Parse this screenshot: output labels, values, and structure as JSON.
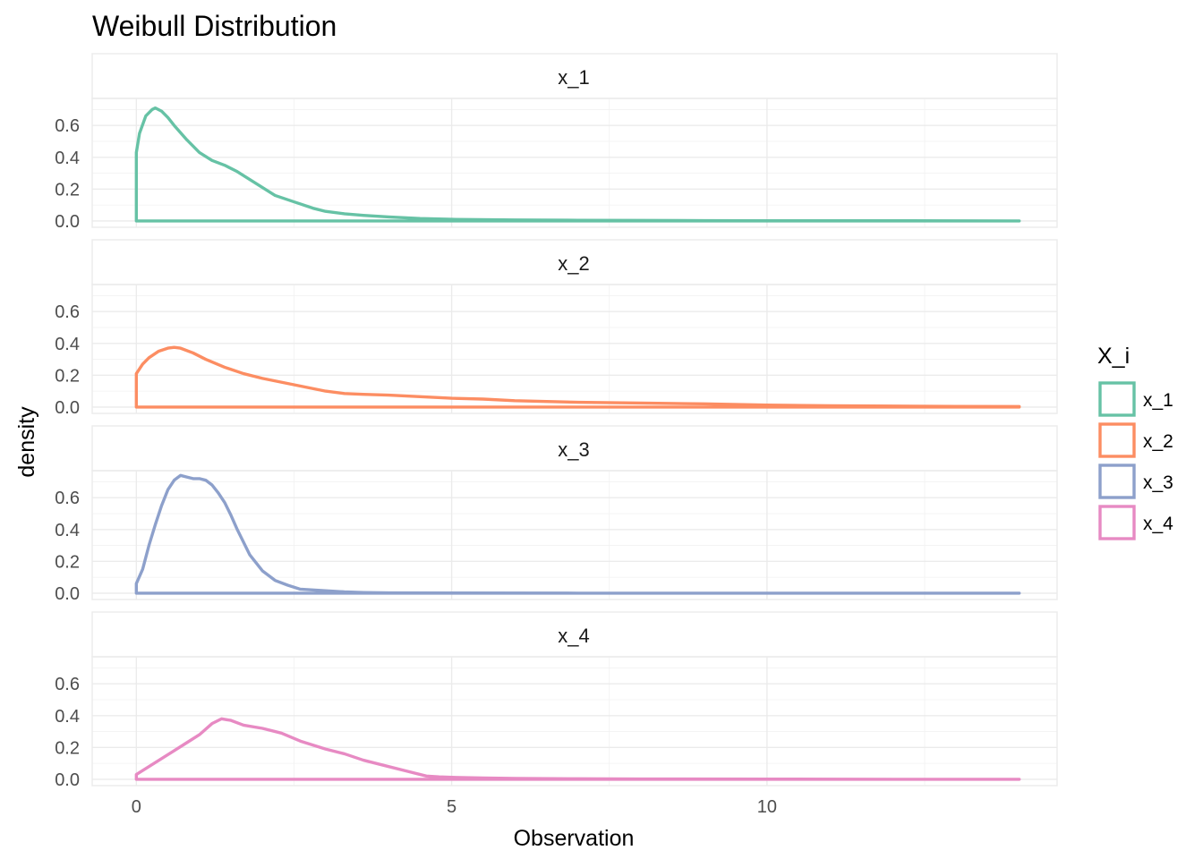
{
  "chart_data": {
    "type": "area",
    "title": "Weibull Distribution",
    "xlabel": "Observation",
    "ylabel": "density",
    "xlim": [
      -0.7,
      14.6
    ],
    "ylim": [
      -0.04,
      0.77
    ],
    "x_ticks": [
      0,
      5,
      10
    ],
    "x_tick_labels": [
      "0",
      "5",
      "10"
    ],
    "y_ticks": [
      0.0,
      0.2,
      0.4,
      0.6
    ],
    "y_tick_labels": [
      "0.0",
      "0.2",
      "0.4",
      "0.6"
    ],
    "grid": true,
    "facets": "stacked-rows",
    "legend": {
      "title": "X_i",
      "position": "right"
    },
    "series": [
      {
        "name": "x_1",
        "color": "#66c2a5",
        "x": [
          0,
          0.05,
          0.15,
          0.25,
          0.3,
          0.4,
          0.5,
          0.6,
          0.8,
          1.0,
          1.2,
          1.4,
          1.6,
          1.8,
          2.0,
          2.2,
          2.5,
          2.8,
          3.0,
          3.3,
          3.6,
          4.0,
          4.5,
          5.0,
          6.0,
          7.0,
          8.0,
          9.0,
          10.0,
          12.0,
          14.0
        ],
        "values": [
          0.43,
          0.55,
          0.66,
          0.7,
          0.71,
          0.69,
          0.65,
          0.6,
          0.51,
          0.43,
          0.38,
          0.35,
          0.31,
          0.26,
          0.21,
          0.16,
          0.12,
          0.08,
          0.06,
          0.045,
          0.035,
          0.025,
          0.015,
          0.01,
          0.006,
          0.004,
          0.003,
          0.002,
          0.001,
          0.001,
          0.0
        ]
      },
      {
        "name": "x_2",
        "color": "#fc8d62",
        "x": [
          0,
          0.1,
          0.2,
          0.35,
          0.5,
          0.6,
          0.7,
          0.9,
          1.1,
          1.4,
          1.7,
          2.0,
          2.5,
          3.0,
          3.3,
          3.6,
          4.0,
          4.5,
          5.0,
          5.5,
          6.0,
          7.0,
          8.0,
          9.0,
          10.0,
          11.0,
          12.0,
          13.0,
          14.0
        ],
        "values": [
          0.21,
          0.27,
          0.31,
          0.35,
          0.37,
          0.375,
          0.37,
          0.34,
          0.3,
          0.25,
          0.21,
          0.18,
          0.14,
          0.1,
          0.085,
          0.08,
          0.075,
          0.065,
          0.055,
          0.05,
          0.04,
          0.03,
          0.025,
          0.02,
          0.012,
          0.008,
          0.006,
          0.004,
          0.003
        ]
      },
      {
        "name": "x_3",
        "color": "#8da0cb",
        "x": [
          0,
          0.1,
          0.2,
          0.3,
          0.4,
          0.5,
          0.6,
          0.7,
          0.8,
          0.9,
          1.0,
          1.1,
          1.2,
          1.3,
          1.4,
          1.5,
          1.6,
          1.7,
          1.8,
          2.0,
          2.2,
          2.4,
          2.6,
          2.8,
          3.0,
          3.3,
          3.6,
          4.0,
          5.0,
          7.0,
          10.0,
          14.0
        ],
        "values": [
          0.06,
          0.15,
          0.3,
          0.43,
          0.55,
          0.65,
          0.71,
          0.74,
          0.73,
          0.72,
          0.72,
          0.71,
          0.68,
          0.63,
          0.57,
          0.49,
          0.4,
          0.32,
          0.24,
          0.14,
          0.08,
          0.05,
          0.025,
          0.02,
          0.015,
          0.008,
          0.004,
          0.002,
          0.001,
          0.0,
          0.0,
          0.0
        ]
      },
      {
        "name": "x_4",
        "color": "#e78ac3",
        "x": [
          0,
          0.2,
          0.4,
          0.6,
          0.8,
          1.0,
          1.2,
          1.35,
          1.5,
          1.7,
          2.0,
          2.3,
          2.6,
          3.0,
          3.3,
          3.6,
          4.0,
          4.3,
          4.6,
          4.8,
          5.0,
          5.5,
          6.0,
          7.0,
          8.0,
          10.0,
          12.0,
          14.0
        ],
        "values": [
          0.03,
          0.08,
          0.13,
          0.18,
          0.23,
          0.28,
          0.35,
          0.38,
          0.37,
          0.34,
          0.32,
          0.29,
          0.24,
          0.19,
          0.16,
          0.12,
          0.08,
          0.05,
          0.02,
          0.015,
          0.012,
          0.008,
          0.005,
          0.003,
          0.002,
          0.001,
          0.0,
          0.0
        ]
      }
    ]
  }
}
